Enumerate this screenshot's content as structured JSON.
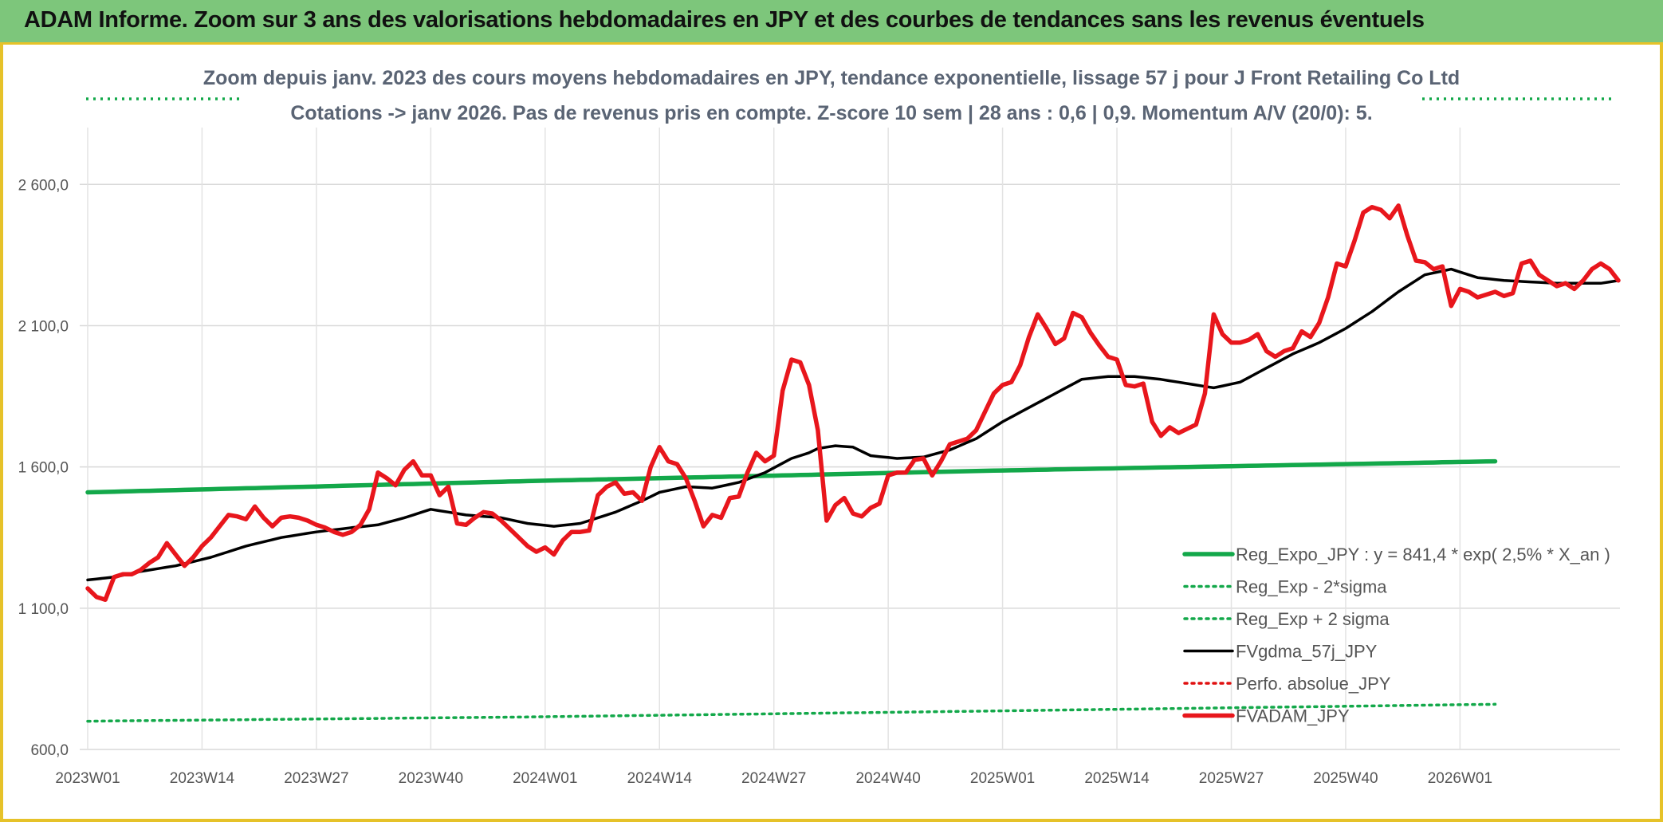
{
  "header": {
    "title": "ADAM Informe. Zoom sur 3 ans des valorisations hebdomadaires en JPY et des courbes de tendances sans les revenus éventuels"
  },
  "chart_data": {
    "type": "line",
    "title": "Zoom depuis janv. 2023 des cours moyens hebdomadaires en JPY, tendance exponentielle, lissage 57 j pour J Front Retailing Co Ltd",
    "subtitle": "Cotations -> janv 2026. Pas de revenus pris en compte. Z-score 10 sem | 28 ans : 0,6 | 0,9. Momentum A/V (20/0): 5.",
    "xlabel": "",
    "ylabel": "",
    "ylim": [
      600,
      2900
    ],
    "yticks": [
      600,
      1100,
      1600,
      2100,
      2600
    ],
    "ytick_labels": [
      "600,0",
      "1 100,0",
      "1 600,0",
      "2 100,0",
      "2 600,0"
    ],
    "x_tick_labels": [
      "2023W01",
      "2023W14",
      "2023W27",
      "2023W40",
      "2024W01",
      "2024W14",
      "2024W27",
      "2024W40",
      "2025W01",
      "2025W14",
      "2025W27",
      "2025W40",
      "2026W01"
    ],
    "x_tick_index": [
      0,
      13,
      26,
      39,
      52,
      65,
      78,
      91,
      104,
      117,
      130,
      143,
      156
    ],
    "grid": true,
    "legend_position": "bottom-right",
    "series": [
      {
        "name": "Reg_Expo_JPY : y = 841,4 * exp( 2,5% *  X_an )",
        "style": "solid-thick",
        "color": "#13a84a",
        "values_sparse": [
          [
            0,
            1510
          ],
          [
            25,
            1530
          ],
          [
            50,
            1550
          ],
          [
            75,
            1567
          ],
          [
            100,
            1585
          ],
          [
            125,
            1600
          ],
          [
            150,
            1614
          ],
          [
            160,
            1620
          ]
        ]
      },
      {
        "name": "Reg_Exp - 2*sigma",
        "style": "dotted",
        "color": "#13a84a",
        "values_sparse": [
          [
            0,
            700
          ],
          [
            50,
            715
          ],
          [
            100,
            735
          ],
          [
            160,
            760
          ]
        ]
      },
      {
        "name": "Reg_Exp + 2 sigma",
        "style": "dotted",
        "color": "#13a84a",
        "values_sparse": [
          [
            0,
            3050
          ],
          [
            16,
            3050
          ],
          [
            140,
            3050
          ],
          [
            160,
            3050
          ]
        ]
      },
      {
        "name": "FVgdma_57j_JPY",
        "style": "solid",
        "color": "#000000",
        "values_sparse": [
          [
            0,
            1200
          ],
          [
            3,
            1210
          ],
          [
            6,
            1230
          ],
          [
            10,
            1250
          ],
          [
            14,
            1280
          ],
          [
            18,
            1320
          ],
          [
            22,
            1350
          ],
          [
            26,
            1370
          ],
          [
            30,
            1385
          ],
          [
            33,
            1395
          ],
          [
            36,
            1420
          ],
          [
            39,
            1450
          ],
          [
            43,
            1430
          ],
          [
            47,
            1420
          ],
          [
            50,
            1400
          ],
          [
            53,
            1390
          ],
          [
            56,
            1400
          ],
          [
            60,
            1440
          ],
          [
            63,
            1480
          ],
          [
            65,
            1510
          ],
          [
            68,
            1530
          ],
          [
            71,
            1525
          ],
          [
            74,
            1545
          ],
          [
            77,
            1580
          ],
          [
            80,
            1630
          ],
          [
            82,
            1650
          ],
          [
            83,
            1665
          ],
          [
            85,
            1675
          ],
          [
            87,
            1670
          ],
          [
            89,
            1640
          ],
          [
            92,
            1630
          ],
          [
            95,
            1635
          ],
          [
            98,
            1660
          ],
          [
            101,
            1700
          ],
          [
            104,
            1760
          ],
          [
            107,
            1810
          ],
          [
            110,
            1860
          ],
          [
            113,
            1910
          ],
          [
            116,
            1920
          ],
          [
            119,
            1920
          ],
          [
            122,
            1910
          ],
          [
            125,
            1895
          ],
          [
            128,
            1880
          ],
          [
            131,
            1900
          ],
          [
            134,
            1950
          ],
          [
            137,
            2000
          ],
          [
            140,
            2040
          ],
          [
            143,
            2090
          ],
          [
            146,
            2150
          ],
          [
            149,
            2220
          ],
          [
            152,
            2280
          ],
          [
            155,
            2300
          ],
          [
            158,
            2270
          ],
          [
            161,
            2260
          ],
          [
            164,
            2255
          ],
          [
            167,
            2250
          ],
          [
            170,
            2250
          ],
          [
            172,
            2250
          ],
          [
            174,
            2260
          ]
        ]
      },
      {
        "name": "Perfo. absolue_JPY",
        "style": "dotted",
        "color": "#e01010",
        "values_sparse": []
      },
      {
        "name": "FVADAM_JPY",
        "style": "solid-thick",
        "color": "#e8161c",
        "values_sparse": [
          [
            0,
            1170
          ],
          [
            1,
            1140
          ],
          [
            2,
            1130
          ],
          [
            3,
            1210
          ],
          [
            4,
            1220
          ],
          [
            5,
            1220
          ],
          [
            6,
            1235
          ],
          [
            7,
            1260
          ],
          [
            8,
            1280
          ],
          [
            9,
            1330
          ],
          [
            10,
            1290
          ],
          [
            11,
            1250
          ],
          [
            12,
            1280
          ],
          [
            13,
            1320
          ],
          [
            14,
            1350
          ],
          [
            15,
            1390
          ],
          [
            16,
            1430
          ],
          [
            17,
            1425
          ],
          [
            18,
            1415
          ],
          [
            19,
            1460
          ],
          [
            20,
            1420
          ],
          [
            21,
            1390
          ],
          [
            22,
            1420
          ],
          [
            23,
            1425
          ],
          [
            24,
            1420
          ],
          [
            25,
            1410
          ],
          [
            26,
            1395
          ],
          [
            27,
            1385
          ],
          [
            28,
            1370
          ],
          [
            29,
            1360
          ],
          [
            30,
            1370
          ],
          [
            31,
            1395
          ],
          [
            32,
            1450
          ],
          [
            33,
            1580
          ],
          [
            34,
            1560
          ],
          [
            35,
            1535
          ],
          [
            36,
            1590
          ],
          [
            37,
            1620
          ],
          [
            38,
            1570
          ],
          [
            39,
            1570
          ],
          [
            40,
            1500
          ],
          [
            41,
            1530
          ],
          [
            42,
            1400
          ],
          [
            43,
            1395
          ],
          [
            44,
            1420
          ],
          [
            45,
            1440
          ],
          [
            46,
            1435
          ],
          [
            47,
            1410
          ],
          [
            48,
            1380
          ],
          [
            49,
            1350
          ],
          [
            50,
            1320
          ],
          [
            51,
            1300
          ],
          [
            52,
            1315
          ],
          [
            53,
            1290
          ],
          [
            54,
            1340
          ],
          [
            55,
            1370
          ],
          [
            56,
            1370
          ],
          [
            57,
            1375
          ],
          [
            58,
            1500
          ],
          [
            59,
            1530
          ],
          [
            60,
            1545
          ],
          [
            61,
            1505
          ],
          [
            62,
            1510
          ],
          [
            63,
            1480
          ],
          [
            64,
            1600
          ],
          [
            65,
            1670
          ],
          [
            66,
            1620
          ],
          [
            67,
            1610
          ],
          [
            68,
            1560
          ],
          [
            69,
            1480
          ],
          [
            70,
            1390
          ],
          [
            71,
            1430
          ],
          [
            72,
            1420
          ],
          [
            73,
            1490
          ],
          [
            74,
            1495
          ],
          [
            75,
            1580
          ],
          [
            76,
            1650
          ],
          [
            77,
            1620
          ],
          [
            78,
            1640
          ],
          [
            79,
            1870
          ],
          [
            80,
            1980
          ],
          [
            81,
            1970
          ],
          [
            82,
            1890
          ],
          [
            83,
            1730
          ],
          [
            84,
            1410
          ],
          [
            85,
            1465
          ],
          [
            86,
            1490
          ],
          [
            87,
            1435
          ],
          [
            88,
            1425
          ],
          [
            89,
            1455
          ],
          [
            90,
            1470
          ],
          [
            91,
            1570
          ],
          [
            92,
            1580
          ],
          [
            93,
            1580
          ],
          [
            94,
            1625
          ],
          [
            95,
            1630
          ],
          [
            96,
            1570
          ],
          [
            97,
            1620
          ],
          [
            98,
            1680
          ],
          [
            99,
            1690
          ],
          [
            100,
            1700
          ],
          [
            101,
            1730
          ],
          [
            102,
            1795
          ],
          [
            103,
            1860
          ],
          [
            104,
            1890
          ],
          [
            105,
            1900
          ],
          [
            106,
            1960
          ],
          [
            107,
            2060
          ],
          [
            108,
            2140
          ],
          [
            109,
            2090
          ],
          [
            110,
            2035
          ],
          [
            111,
            2055
          ],
          [
            112,
            2145
          ],
          [
            113,
            2130
          ],
          [
            114,
            2075
          ],
          [
            115,
            2030
          ],
          [
            116,
            1990
          ],
          [
            117,
            1980
          ],
          [
            118,
            1890
          ],
          [
            119,
            1885
          ],
          [
            120,
            1895
          ],
          [
            121,
            1760
          ],
          [
            122,
            1710
          ],
          [
            123,
            1740
          ],
          [
            124,
            1720
          ],
          [
            125,
            1735
          ],
          [
            126,
            1750
          ],
          [
            127,
            1860
          ],
          [
            128,
            2140
          ],
          [
            129,
            2070
          ],
          [
            130,
            2040
          ],
          [
            131,
            2040
          ],
          [
            132,
            2050
          ],
          [
            133,
            2070
          ],
          [
            134,
            2010
          ],
          [
            135,
            1990
          ],
          [
            136,
            2010
          ],
          [
            137,
            2020
          ],
          [
            138,
            2080
          ],
          [
            139,
            2060
          ],
          [
            140,
            2110
          ],
          [
            141,
            2200
          ],
          [
            142,
            2320
          ],
          [
            143,
            2310
          ],
          [
            144,
            2400
          ],
          [
            145,
            2500
          ],
          [
            146,
            2520
          ],
          [
            147,
            2510
          ],
          [
            148,
            2480
          ],
          [
            149,
            2525
          ],
          [
            150,
            2420
          ],
          [
            151,
            2330
          ],
          [
            152,
            2325
          ],
          [
            153,
            2300
          ],
          [
            154,
            2310
          ],
          [
            155,
            2170
          ],
          [
            156,
            2230
          ],
          [
            157,
            2220
          ],
          [
            158,
            2200
          ],
          [
            159,
            2210
          ],
          [
            160,
            2220
          ],
          [
            161,
            2205
          ],
          [
            162,
            2215
          ],
          [
            163,
            2320
          ],
          [
            164,
            2330
          ],
          [
            165,
            2280
          ],
          [
            166,
            2260
          ],
          [
            167,
            2240
          ],
          [
            168,
            2250
          ],
          [
            169,
            2230
          ],
          [
            170,
            2260
          ],
          [
            171,
            2300
          ],
          [
            172,
            2320
          ],
          [
            173,
            2300
          ],
          [
            174,
            2260
          ]
        ]
      }
    ]
  }
}
